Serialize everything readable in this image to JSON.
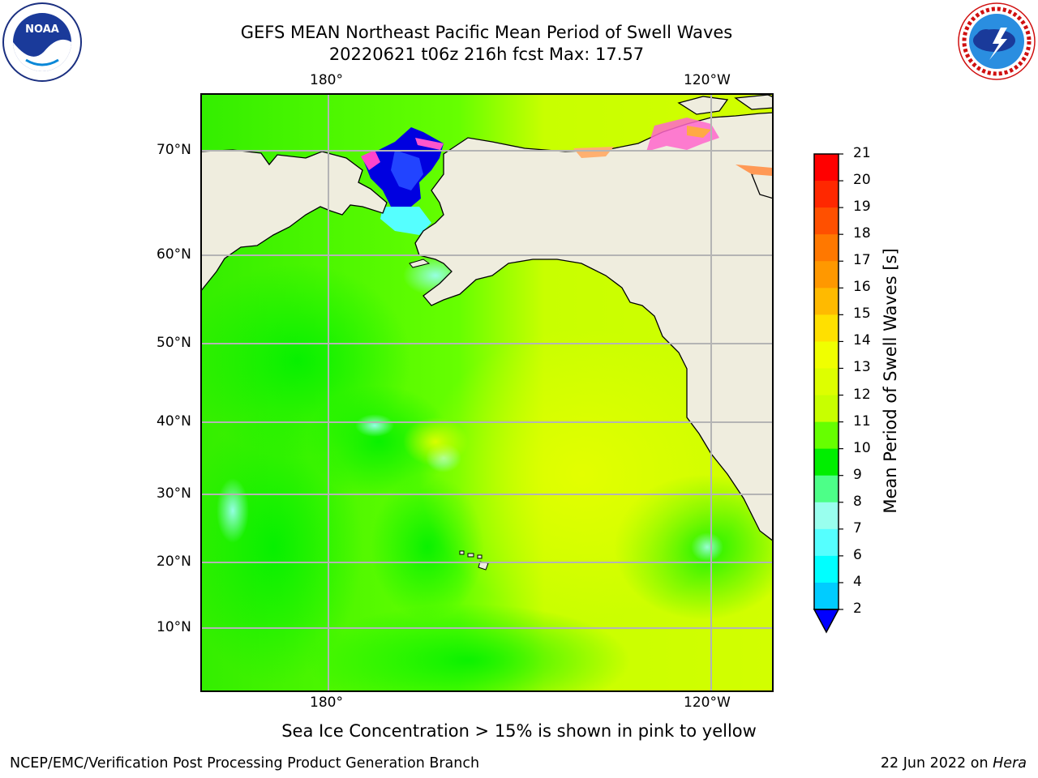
{
  "header": {
    "title_line1": "GEFS MEAN Northeast Pacific Mean Period of Swell Waves",
    "title_line2": "20220621 t06z 216h fcst   Max: 17.57"
  },
  "logos": {
    "left": "noaa-logo",
    "right": "nws-logo"
  },
  "map": {
    "region": "Northeast Pacific",
    "lon_labels_top": [
      "180°",
      "120°W"
    ],
    "lon_labels_bottom": [
      "180°",
      "120°W"
    ],
    "lat_labels": [
      "70°N",
      "60°N",
      "50°N",
      "40°N",
      "30°N",
      "20°N",
      "10°N"
    ],
    "land_color": "#efedde",
    "grid_color": "#b4b4b4",
    "ocean_dominant_colors": [
      "#c8ff00",
      "#66ff00",
      "#00f000"
    ]
  },
  "colorbar": {
    "label": "Mean Period of Swell Waves [s]",
    "ticks": [
      "21",
      "20",
      "19",
      "18",
      "17",
      "16",
      "15",
      "14",
      "13",
      "12",
      "11",
      "10",
      "9",
      "8",
      "7",
      "6",
      "4",
      "2"
    ],
    "colors": [
      "#ff0000",
      "#ff2800",
      "#ff5000",
      "#ff7800",
      "#ff9800",
      "#ffba00",
      "#ffe000",
      "#f0ff00",
      "#ddff00",
      "#c8ff00",
      "#66ff00",
      "#00ee00",
      "#4dff88",
      "#99ffee",
      "#55ffff",
      "#00ffff",
      "#00ccff",
      "#0077ff"
    ],
    "extend_color": "#0000ff"
  },
  "note": "Sea Ice Concentration > 15% is shown in pink to yellow",
  "footer": {
    "left": "NCEP/EMC/Verification Post Processing Product Generation Branch",
    "date": "22 Jun 2022 on",
    "host": "Hera"
  }
}
